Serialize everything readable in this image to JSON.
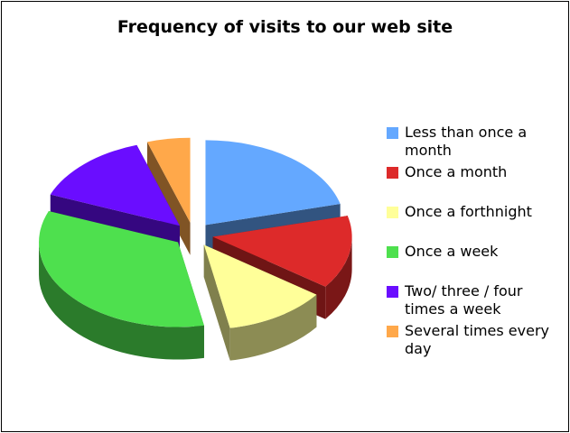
{
  "chart_data": {
    "type": "pie",
    "title": "Frequency of visits to our web site",
    "legend_position": "right",
    "three_d": true,
    "exploded": true,
    "categories": [
      "Less than once a month",
      "Once a month",
      "Once a forthnight",
      "Once a week",
      "Two/ three / four times a week",
      "Several times every day"
    ],
    "values": [
      21,
      14,
      12,
      34,
      14,
      5
    ],
    "colors": [
      "#64a8ff",
      "#dd2a2a",
      "#ffff99",
      "#4ee04e",
      "#6a0dff",
      "#ffa84a"
    ]
  }
}
